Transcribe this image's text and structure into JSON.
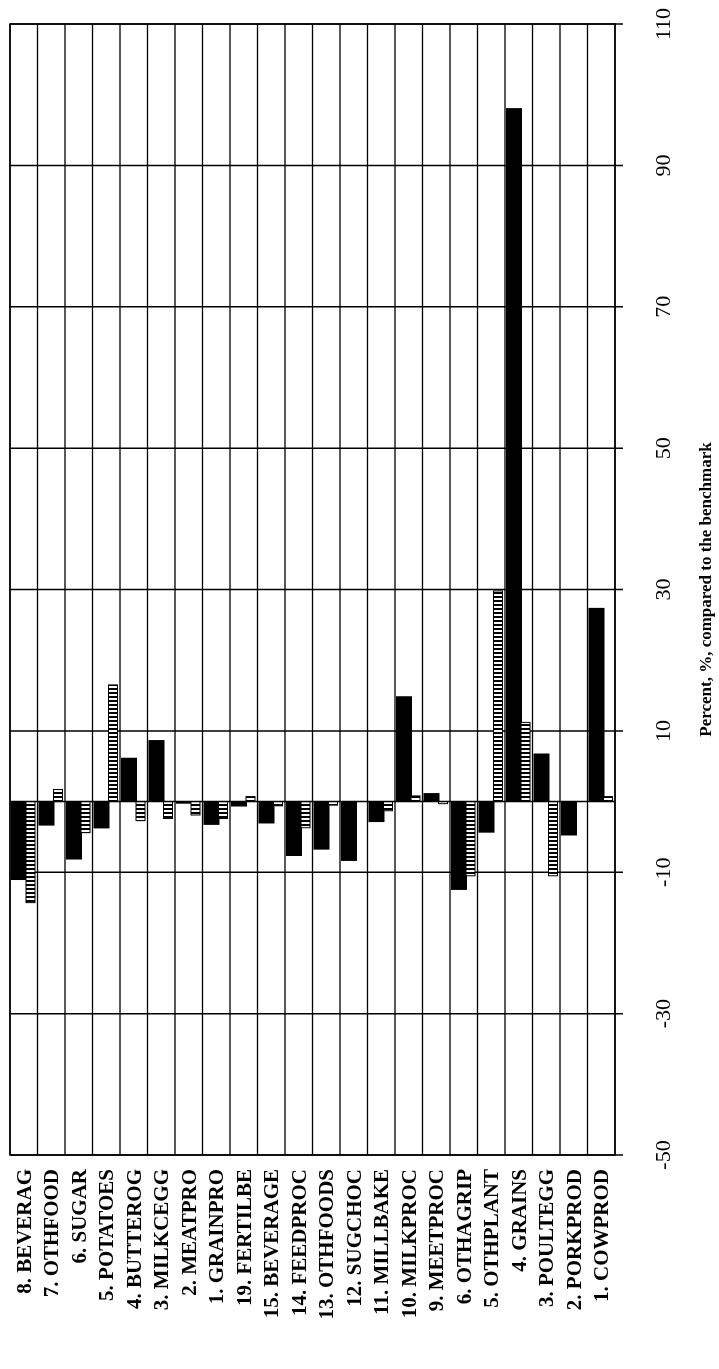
{
  "chart_data": {
    "type": "bar",
    "ylabel": "Percent, %, compared to the benchmark",
    "categories": [
      "8. BEVERAG",
      "7. OTHFOOD",
      "6. SUGAR",
      "5. POTATOES",
      "4. BUTTEROG",
      "3. MILKCEGG",
      "2. MEATPRO",
      "1. GRAINPRO",
      "19. FERTILBE",
      "15. BEVERAGE",
      "14. FEEDPROC",
      "13. OTHFOODS",
      "12. SUGCHOC",
      "11. MILLBAKE",
      "10. MILKPROC",
      "9. MEETPROC",
      "6. OTHAGRIP",
      "5. OTHPLANT",
      "4. GRAINS",
      "3. POULTEGG",
      "2. PORKPROD",
      "1. COWPROD"
    ],
    "series": [
      {
        "color": "#000000",
        "values": [
          -11.1,
          -3.4,
          -8.2,
          -3.8,
          6.2,
          8.7,
          -0.3,
          -3.3,
          -0.7,
          -3.1,
          -7.7,
          -6.8,
          -8.4,
          -2.9,
          14.9,
          1.2,
          -12.5,
          -4.4,
          98.1,
          6.8,
          -4.8,
          27.4
        ]
      },
      {
        "color": "#000000",
        "values": [
          -14.3,
          1.7,
          -4.4,
          16.5,
          -2.7,
          -2.4,
          -1.9,
          -2.4,
          0.7,
          -0.6,
          -3.7,
          -0.5,
          null,
          -1.3,
          0.8,
          -0.3,
          -10.5,
          29.8,
          11.2,
          -10.5,
          null,
          0.7
        ]
      }
    ],
    "ylim": [
      -50,
      110
    ],
    "yticks": [
      -50,
      -30,
      -10,
      10,
      30,
      50,
      70,
      90,
      110
    ],
    "grid": true
  }
}
